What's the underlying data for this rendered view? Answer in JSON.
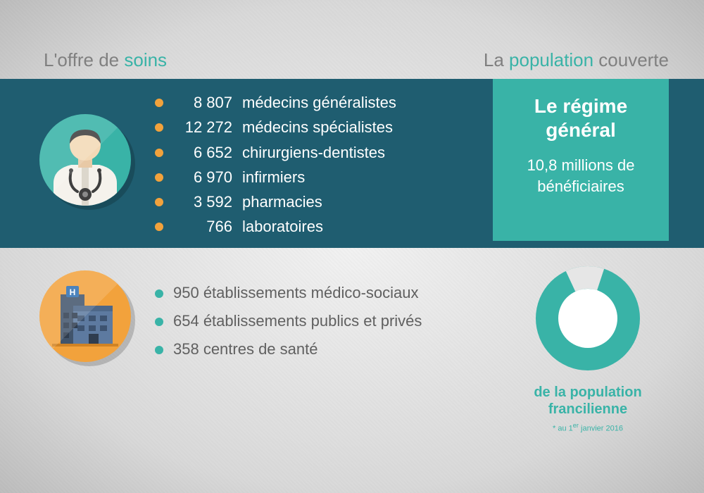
{
  "colors": {
    "teal": "#39b3a7",
    "dark_teal_band": "#1f5d70",
    "orange": "#f2a23c",
    "grey_text": "#808080",
    "grey_text2": "#606060",
    "white": "#ffffff",
    "bg_center": "#f2f2f2",
    "bg_edge": "#bdbdbd"
  },
  "left_title": {
    "prefix": "L'offre de ",
    "accent": "soins"
  },
  "right_title": {
    "prefix": "La ",
    "accent": "population",
    "suffix": " couverte"
  },
  "healthcare_stats": [
    {
      "value": "8 807",
      "label": "médecins généralistes"
    },
    {
      "value": "12 272",
      "label": "médecins spécialistes"
    },
    {
      "value": "6 652",
      "label": "chirurgiens-dentistes"
    },
    {
      "value": "6 970",
      "label": "infirmiers"
    },
    {
      "value": "3 592",
      "label": "pharmacies"
    },
    {
      "value": "766",
      "label": "laboratoires"
    }
  ],
  "establishments": [
    "950 établissements médico-sociaux",
    "654 établissements publics et privés",
    "358 centres de santé"
  ],
  "regime": {
    "title": "Le régime général",
    "subtitle": "10,8 millions de bénéficiaires"
  },
  "donut": {
    "fraction": 0.88,
    "empty_start_deg": -25,
    "fill_color": "#39b3a7",
    "empty_color": "#e6e6e6",
    "hole_color": "#ffffff",
    "outer_r": 74,
    "inner_r": 42,
    "caption": "de la population francilienne",
    "footnote_prefix": "* au 1",
    "footnote_super": "er",
    "footnote_suffix": " janvier 2016"
  }
}
